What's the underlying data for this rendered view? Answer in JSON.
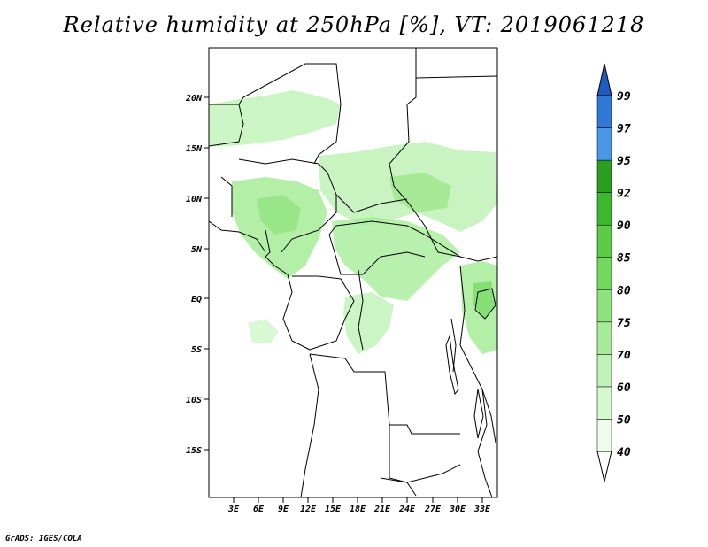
{
  "title": "Relative humidity at 250hPa [%], VT: 2019061218",
  "footer": "GrADS: IGES/COLA",
  "map": {
    "lat_labels": [
      "20N",
      "15N",
      "10N",
      "5N",
      "EQ",
      "5S",
      "10S",
      "15S"
    ],
    "lon_labels": [
      "3E",
      "6E",
      "9E",
      "12E",
      "15E",
      "18E",
      "21E",
      "24E",
      "27E",
      "30E",
      "33E"
    ]
  },
  "colorbar": {
    "levels": [
      "40",
      "50",
      "60",
      "70",
      "75",
      "80",
      "85",
      "90",
      "92",
      "95",
      "97",
      "99"
    ],
    "colors": [
      "#effdeb",
      "#d5f8cf",
      "#bff2b6",
      "#a6ec98",
      "#8fe37c",
      "#72d95e",
      "#5acc46",
      "#3bb82e",
      "#2a9e1e",
      "#4a97e8",
      "#2f78d6",
      "#1d5cc0"
    ]
  }
}
